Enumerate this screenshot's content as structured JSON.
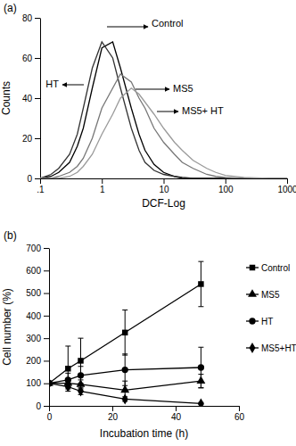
{
  "chart_data": [
    {
      "type": "line",
      "title": "(a)",
      "x_label": "DCF-Log",
      "y_label": "Counts",
      "log": "x",
      "xlim": [
        0.1,
        1000
      ],
      "xticks": [
        {
          "value": 0.1,
          "label": ".1"
        },
        1,
        10,
        100,
        1000
      ],
      "ylim": [
        0,
        80
      ],
      "yticks": [
        0,
        20,
        40,
        60,
        80
      ],
      "x": [
        0.1,
        0.15,
        0.2,
        0.3,
        0.4,
        0.5,
        0.7,
        1,
        1.5,
        2,
        3,
        4,
        5,
        7,
        10,
        15,
        20,
        30,
        50,
        70,
        100,
        200,
        500,
        1000
      ],
      "series": [
        {
          "name": "Control",
          "color": "#000000",
          "values": [
            0,
            1,
            3,
            8,
            16,
            25,
            45,
            65,
            68,
            55,
            35,
            22,
            14,
            7,
            3,
            1,
            0.5,
            0,
            0,
            0,
            0,
            0,
            0,
            0
          ]
        },
        {
          "name": "HT",
          "color": "#333333",
          "values": [
            0,
            2,
            5,
            12,
            22,
            35,
            55,
            68,
            60,
            45,
            25,
            14,
            8,
            4,
            2,
            1,
            0,
            0,
            0,
            0,
            0,
            0,
            0,
            0
          ]
        },
        {
          "name": "MS5",
          "color": "#777777",
          "values": [
            0,
            0,
            1,
            3,
            6,
            10,
            20,
            35,
            45,
            52,
            48,
            40,
            35,
            25,
            18,
            12,
            8,
            5,
            2,
            1,
            0.5,
            0,
            0,
            0
          ]
        },
        {
          "name": "MS5+ HT",
          "color": "#9a9a9a",
          "values": [
            0,
            0,
            0,
            1,
            3,
            6,
            12,
            22,
            32,
            40,
            45,
            42,
            38,
            32,
            25,
            18,
            14,
            9,
            5,
            3,
            1.5,
            0.5,
            0,
            0
          ]
        }
      ]
    },
    {
      "type": "line",
      "title": "(b)",
      "x_label": "Incubation time (h)",
      "y_label": "Cell number (%)",
      "xlim": [
        0,
        60
      ],
      "xticks": [
        0,
        20,
        40,
        60
      ],
      "ylim": [
        0,
        700
      ],
      "yticks": [
        0,
        100,
        200,
        300,
        400,
        500,
        600,
        700
      ],
      "legend": "right",
      "x": [
        0,
        6,
        10,
        24,
        48
      ],
      "series": [
        {
          "name": "Control",
          "color": "#000000",
          "marker": "square",
          "values": [
            100,
            165,
            200,
            325,
            540
          ],
          "errors": [
            0,
            100,
            100,
            100,
            100
          ]
        },
        {
          "name": "MS5",
          "color": "#000000",
          "marker": "triangle",
          "values": [
            100,
            100,
            95,
            70,
            110
          ],
          "errors": [
            0,
            20,
            20,
            40,
            30
          ]
        },
        {
          "name": "HT",
          "color": "#000000",
          "marker": "circle",
          "values": [
            100,
            115,
            135,
            160,
            170
          ],
          "errors": [
            0,
            30,
            40,
            70,
            90
          ]
        },
        {
          "name": "MS5+HT",
          "color": "#000000",
          "marker": "diamond",
          "values": [
            100,
            85,
            65,
            30,
            10
          ],
          "errors": [
            0,
            10,
            15,
            10,
            5
          ]
        }
      ]
    }
  ]
}
